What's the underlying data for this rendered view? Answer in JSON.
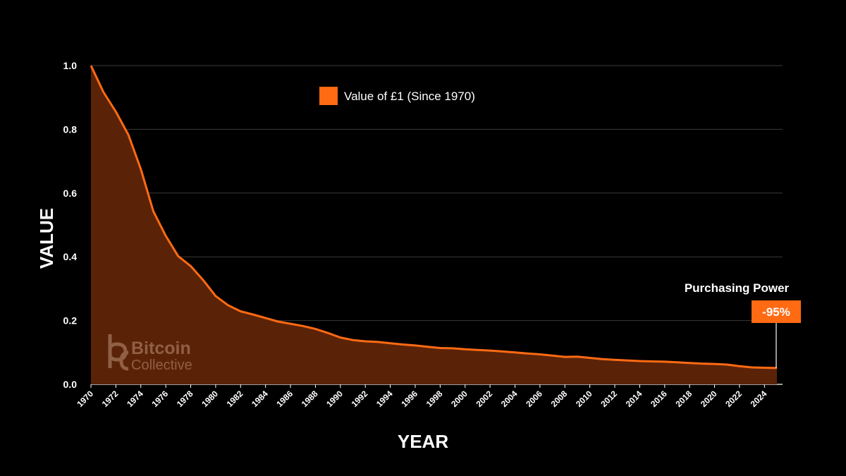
{
  "chart_data": {
    "type": "area",
    "title": "",
    "xlabel": "YEAR",
    "ylabel": "VALUE",
    "ylim": [
      0,
      1
    ],
    "xlim": [
      1970,
      2025
    ],
    "y_ticks": [
      "0.0",
      "0.2",
      "0.4",
      "0.6",
      "0.8",
      "1.0"
    ],
    "x_ticks": [
      "1970",
      "1972",
      "1974",
      "1976",
      "1978",
      "1980",
      "1982",
      "1984",
      "1986",
      "1988",
      "1990",
      "1992",
      "1994",
      "1996",
      "1998",
      "2000",
      "2002",
      "2004",
      "2006",
      "2008",
      "2010",
      "2012",
      "2014",
      "2016",
      "2018",
      "2020",
      "2022",
      "2024"
    ],
    "grid": "horizontal",
    "legend_position": "top-center",
    "series": [
      {
        "name": "Value of £1 (Since 1970)",
        "color": "#ff6a13",
        "fill_color": "#5a2308",
        "x": [
          1970,
          1971,
          1972,
          1973,
          1974,
          1975,
          1976,
          1977,
          1978,
          1979,
          1980,
          1981,
          1982,
          1983,
          1984,
          1985,
          1986,
          1987,
          1988,
          1989,
          1990,
          1991,
          1992,
          1993,
          1994,
          1995,
          1996,
          1997,
          1998,
          1999,
          2000,
          2001,
          2002,
          2003,
          2004,
          2005,
          2006,
          2007,
          2008,
          2009,
          2010,
          2011,
          2012,
          2013,
          2014,
          2015,
          2016,
          2017,
          2018,
          2019,
          2020,
          2021,
          2022,
          2023,
          2024,
          2025
        ],
        "values": [
          1.0,
          0.917,
          0.855,
          0.783,
          0.675,
          0.543,
          0.466,
          0.402,
          0.371,
          0.327,
          0.277,
          0.248,
          0.229,
          0.219,
          0.208,
          0.197,
          0.19,
          0.183,
          0.174,
          0.161,
          0.147,
          0.139,
          0.135,
          0.133,
          0.129,
          0.125,
          0.122,
          0.118,
          0.114,
          0.113,
          0.11,
          0.108,
          0.106,
          0.103,
          0.1,
          0.097,
          0.094,
          0.09,
          0.086,
          0.087,
          0.083,
          0.079,
          0.077,
          0.075,
          0.073,
          0.072,
          0.071,
          0.069,
          0.067,
          0.065,
          0.064,
          0.062,
          0.057,
          0.053,
          0.052,
          0.051
        ]
      }
    ],
    "annotation": {
      "title": "Purchasing Power",
      "value": "-95%",
      "x": 2025,
      "y": 0.051,
      "badge_color": "#ff6a13"
    }
  },
  "watermark": {
    "line1": "Bitcoin",
    "line2": "Collective",
    "icon": "bitcoin-collective-logo-icon"
  }
}
